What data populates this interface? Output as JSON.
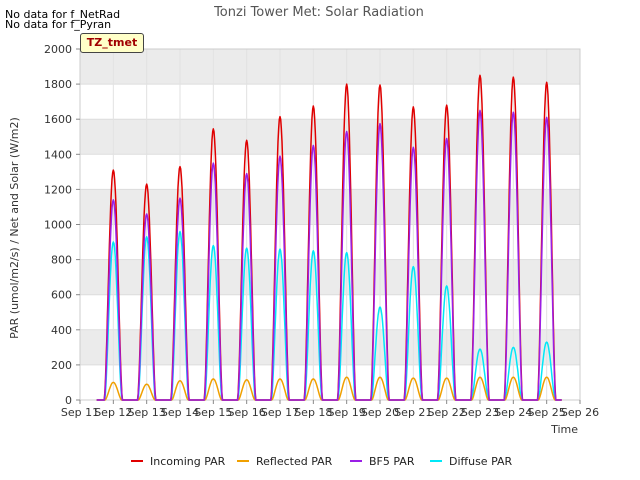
{
  "notes": [
    "No data for f_NetRad",
    "No data for f_Pyran"
  ],
  "badge": "TZ_tmet",
  "chart_data": {
    "type": "line",
    "title": "Tonzi Tower Met: Solar Radiation",
    "xlabel": "Time",
    "ylabel": "PAR (umol/m2/s) / Net and Solar (W/m2)",
    "ylim": [
      0,
      2000
    ],
    "yticks": [
      0,
      200,
      400,
      600,
      800,
      1000,
      1200,
      1400,
      1600,
      1800,
      2000
    ],
    "xlim": [
      11,
      26
    ],
    "xticks": [
      11,
      12,
      13,
      14,
      15,
      16,
      17,
      18,
      19,
      20,
      21,
      22,
      23,
      24,
      25,
      26
    ],
    "xtick_labels": [
      "Sep 11",
      "Sep 12",
      "Sep 13",
      "Sep 14",
      "Sep 15",
      "Sep 16",
      "Sep 17",
      "Sep 18",
      "Sep 19",
      "Sep 20",
      "Sep 21",
      "Sep 22",
      "Sep 23",
      "Sep 24",
      "Sep 25",
      "Sep 26"
    ],
    "grid": true,
    "colors": {
      "band": "#ebebeb",
      "Incoming PAR": "#e00000",
      "Reflected PAR": "#f0a000",
      "BF5 PAR": "#9a1ee6",
      "Diffuse PAR": "#00e8f8"
    },
    "daily_peaks": {
      "days": [
        12,
        13,
        14,
        15,
        16,
        17,
        18,
        19,
        20,
        21,
        22,
        23,
        24,
        25
      ],
      "series": [
        {
          "name": "Incoming PAR",
          "values": [
            1310,
            1230,
            1330,
            1545,
            1480,
            1615,
            1675,
            1800,
            1795,
            1670,
            1680,
            1850,
            1840,
            1810
          ]
        },
        {
          "name": "Reflected PAR",
          "values": [
            100,
            90,
            110,
            120,
            115,
            120,
            120,
            130,
            130,
            125,
            125,
            130,
            130,
            130
          ]
        },
        {
          "name": "BF5 PAR",
          "values": [
            1140,
            1060,
            1150,
            1350,
            1290,
            1390,
            1450,
            1530,
            1575,
            1440,
            1490,
            1650,
            1640,
            1610
          ]
        },
        {
          "name": "Diffuse PAR",
          "values": [
            900,
            930,
            960,
            880,
            865,
            860,
            850,
            840,
            530,
            760,
            650,
            290,
            300,
            330
          ]
        }
      ]
    }
  }
}
